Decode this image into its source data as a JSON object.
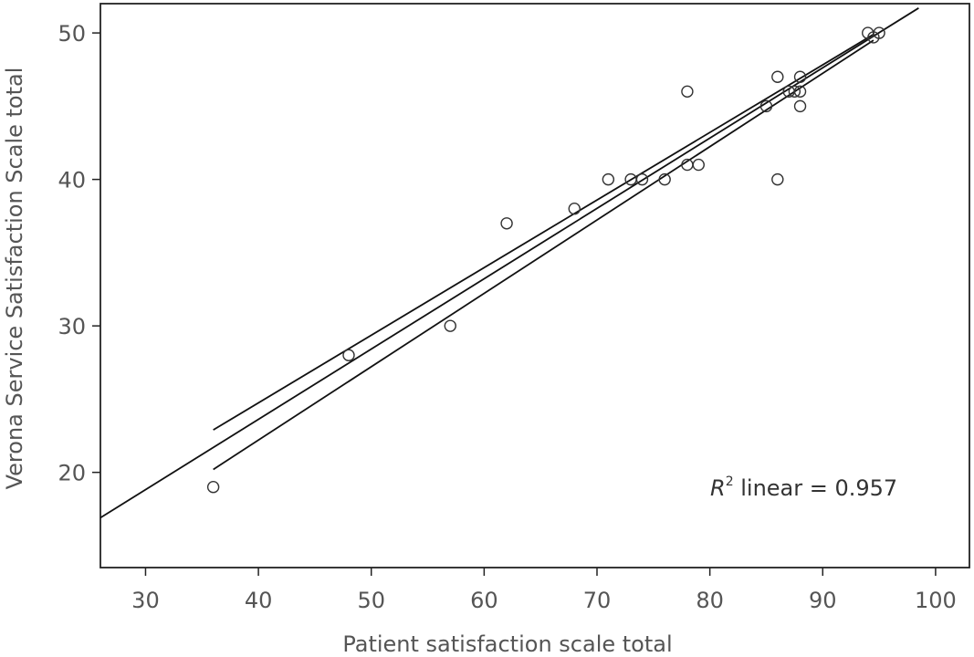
{
  "chart_data": {
    "type": "scatter",
    "xlabel": "Patient satisfaction scale total",
    "ylabel": "Verona Service Satisfaction Scale total",
    "xlim": [
      26,
      103
    ],
    "ylim": [
      13.5,
      52
    ],
    "xticks": [
      30,
      40,
      50,
      60,
      70,
      80,
      90,
      100
    ],
    "yticks": [
      20,
      30,
      40,
      50
    ],
    "grid": false,
    "legend": "none",
    "annotation": {
      "r_symbol": "R",
      "superscript": "2",
      "text": " linear = 0.957"
    },
    "points": [
      {
        "x": 36,
        "y": 19
      },
      {
        "x": 48,
        "y": 28
      },
      {
        "x": 57,
        "y": 30
      },
      {
        "x": 62,
        "y": 37
      },
      {
        "x": 68,
        "y": 38
      },
      {
        "x": 71,
        "y": 40
      },
      {
        "x": 73,
        "y": 40
      },
      {
        "x": 74,
        "y": 40
      },
      {
        "x": 76,
        "y": 40
      },
      {
        "x": 78,
        "y": 46
      },
      {
        "x": 78,
        "y": 41
      },
      {
        "x": 79,
        "y": 41
      },
      {
        "x": 85,
        "y": 45
      },
      {
        "x": 86,
        "y": 47
      },
      {
        "x": 86,
        "y": 40
      },
      {
        "x": 87,
        "y": 46
      },
      {
        "x": 87.5,
        "y": 46
      },
      {
        "x": 88,
        "y": 47
      },
      {
        "x": 88,
        "y": 46
      },
      {
        "x": 88,
        "y": 45
      },
      {
        "x": 94,
        "y": 50
      },
      {
        "x": 94.5,
        "y": 49.7
      },
      {
        "x": 95,
        "y": 50
      }
    ],
    "fit_line": {
      "x": [
        26,
        98.5
      ],
      "y": [
        16.9,
        51.7
      ]
    },
    "ci_upper": {
      "x": [
        36,
        94.5
      ],
      "y": [
        22.9,
        49.9
      ]
    },
    "ci_lower": {
      "x": [
        36,
        94.5
      ],
      "y": [
        20.2,
        49.5
      ]
    }
  }
}
